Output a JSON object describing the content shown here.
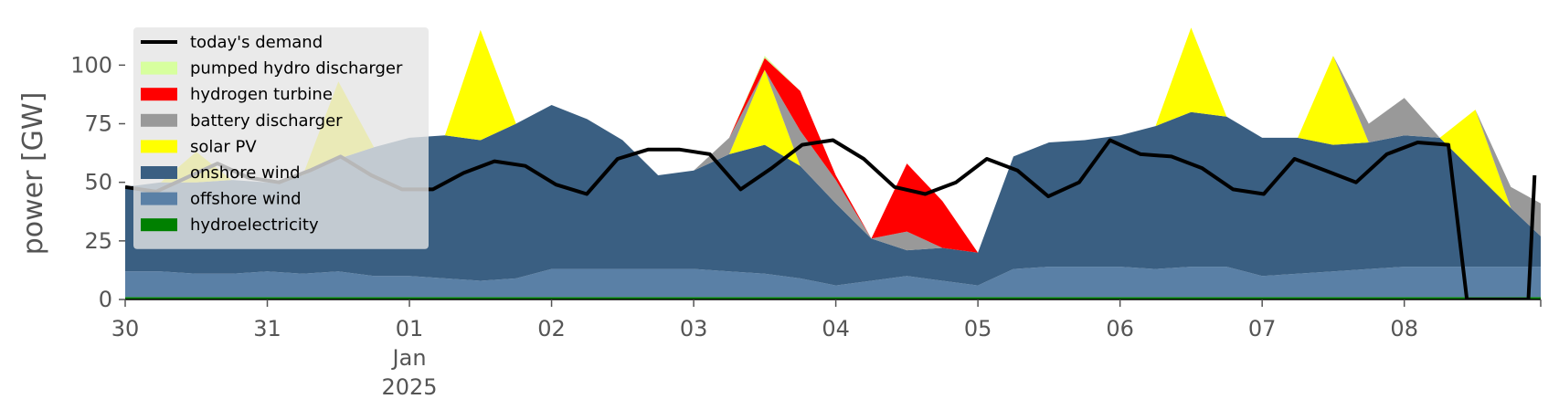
{
  "chart_data": {
    "type": "area",
    "ylabel": "power [GW]",
    "ylim": [
      0,
      120
    ],
    "yticks": [
      0,
      25,
      50,
      75,
      100
    ],
    "xlim": [
      0,
      9.96
    ],
    "x_ticks": [
      {
        "x": 0,
        "label": "30"
      },
      {
        "x": 1,
        "label": "31"
      },
      {
        "x": 2,
        "label": "01",
        "sub": [
          "Jan",
          "2025"
        ]
      },
      {
        "x": 3,
        "label": "02"
      },
      {
        "x": 4,
        "label": "03"
      },
      {
        "x": 5,
        "label": "04"
      },
      {
        "x": 6,
        "label": "05"
      },
      {
        "x": 7,
        "label": "06"
      },
      {
        "x": 8,
        "label": "07"
      },
      {
        "x": 9,
        "label": "08"
      }
    ],
    "legend_position": "top-left",
    "grid": false,
    "x": [
      0,
      0.25,
      0.5,
      0.75,
      1,
      1.25,
      1.5,
      1.75,
      2,
      2.25,
      2.5,
      2.75,
      3,
      3.25,
      3.5,
      3.75,
      4,
      4.25,
      4.5,
      4.75,
      5,
      5.25,
      5.5,
      5.75,
      6,
      6.25,
      6.5,
      6.75,
      7,
      7.25,
      7.5,
      7.75,
      8,
      8.25,
      8.5,
      8.75,
      9,
      9.25,
      9.5,
      9.75,
      9.96
    ],
    "stack_series": [
      {
        "name": "hydroelectricity",
        "color": "#008000",
        "values": [
          1,
          1,
          1,
          1,
          1,
          1,
          1,
          1,
          1,
          1,
          1,
          1,
          1,
          1,
          1,
          1,
          1,
          1,
          1,
          1,
          1,
          1,
          1,
          1,
          1,
          1,
          1,
          1,
          1,
          1,
          1,
          1,
          1,
          1,
          1,
          1,
          1,
          1,
          1,
          1,
          1
        ]
      },
      {
        "name": "offshore wind",
        "color": "#5a80a6",
        "values": [
          11,
          11,
          10,
          10,
          11,
          10,
          11,
          9,
          9,
          8,
          7,
          8,
          12,
          12,
          12,
          12,
          12,
          11,
          10,
          8,
          5,
          7,
          9,
          7,
          5,
          12,
          13,
          13,
          13,
          12,
          13,
          13,
          9,
          10,
          11,
          12,
          13,
          13,
          13,
          13,
          13
        ]
      },
      {
        "name": "onshore wind",
        "color": "#3a5f82",
        "values": [
          36,
          38,
          39,
          40,
          38,
          42,
          48,
          55,
          59,
          61,
          60,
          66,
          70,
          64,
          55,
          40,
          42,
          50,
          55,
          48,
          35,
          18,
          11,
          14,
          14,
          48,
          53,
          54,
          56,
          61,
          66,
          64,
          59,
          58,
          54,
          54,
          56,
          55,
          40,
          25,
          13
        ]
      },
      {
        "name": "solar PV",
        "color": "#ffff00",
        "values": [
          0,
          0,
          13,
          0,
          0,
          0,
          33,
          0,
          0,
          0,
          47,
          0,
          0,
          0,
          0,
          0,
          0,
          0,
          32,
          0,
          0,
          0,
          0,
          0,
          0,
          0,
          0,
          0,
          0,
          0,
          36,
          0,
          0,
          0,
          38,
          0,
          0,
          0,
          27,
          0,
          0
        ]
      },
      {
        "name": "battery discharger",
        "color": "#999999",
        "values": [
          0,
          0,
          0,
          0,
          0,
          0,
          0,
          0,
          0,
          0,
          0,
          0,
          0,
          0,
          0,
          0,
          0,
          7,
          0,
          15,
          10,
          0,
          8,
          0,
          0,
          0,
          0,
          0,
          0,
          0,
          0,
          0,
          0,
          0,
          0,
          8,
          16,
          0,
          0,
          9,
          14
        ]
      },
      {
        "name": "hydrogen turbine",
        "color": "#ff0000",
        "values": [
          0,
          0,
          0,
          0,
          0,
          0,
          0,
          0,
          0,
          0,
          0,
          0,
          0,
          0,
          0,
          0,
          0,
          0,
          5,
          17,
          2,
          0,
          29,
          20,
          0,
          0,
          0,
          0,
          0,
          0,
          0,
          0,
          0,
          0,
          0,
          0,
          0,
          0,
          0,
          0,
          0
        ]
      },
      {
        "name": "pumped hydro discharger",
        "color": "#d7ff9e",
        "values": [
          0,
          0,
          0,
          0,
          0,
          0,
          0,
          0,
          0,
          0,
          0,
          0,
          0,
          0,
          0,
          0,
          0,
          0,
          1,
          0,
          0,
          0,
          0,
          0,
          0,
          0,
          0,
          0,
          0,
          0,
          0,
          0,
          0,
          0,
          0,
          0,
          0,
          0,
          0,
          0,
          0
        ]
      }
    ],
    "demand_series": {
      "name": "today's demand",
      "color": "#000000",
      "points": [
        [
          0,
          48
        ],
        [
          0.25,
          46
        ],
        [
          0.5,
          52
        ],
        [
          0.75,
          58
        ],
        [
          1,
          52
        ],
        [
          1.25,
          50
        ],
        [
          1.5,
          55
        ],
        [
          1.75,
          61
        ],
        [
          2,
          53
        ],
        [
          2.25,
          47
        ],
        [
          2.5,
          47
        ],
        [
          2.75,
          54
        ],
        [
          3,
          59
        ],
        [
          3.25,
          57
        ],
        [
          3.5,
          49
        ],
        [
          3.75,
          45
        ],
        [
          4,
          60
        ],
        [
          4.25,
          64
        ],
        [
          4.5,
          64
        ],
        [
          4.75,
          62
        ],
        [
          5,
          47
        ],
        [
          5.25,
          56
        ],
        [
          5.5,
          66
        ],
        [
          5.75,
          68
        ],
        [
          6,
          60
        ],
        [
          6.25,
          48
        ],
        [
          6.5,
          45
        ],
        [
          6.75,
          50
        ],
        [
          7,
          60
        ],
        [
          7.25,
          55
        ],
        [
          7.5,
          44
        ],
        [
          7.75,
          50
        ],
        [
          8,
          68
        ],
        [
          8.25,
          62
        ],
        [
          8.5,
          61
        ],
        [
          8.75,
          56
        ],
        [
          9,
          47
        ],
        [
          9.25,
          45
        ],
        [
          9.5,
          60
        ],
        [
          9.75,
          55
        ],
        [
          10,
          50
        ],
        [
          10.25,
          62
        ],
        [
          10.5,
          67
        ],
        [
          10.75,
          66
        ],
        [
          10.9,
          0
        ],
        [
          11.4,
          0
        ],
        [
          11.45,
          53
        ]
      ]
    }
  },
  "legend": {
    "items": [
      {
        "label": "today's demand",
        "color": "#000000",
        "kind": "line"
      },
      {
        "label": "pumped hydro discharger",
        "color": "#d7ff9e",
        "kind": "patch"
      },
      {
        "label": "hydrogen turbine",
        "color": "#ff0000",
        "kind": "patch"
      },
      {
        "label": "battery discharger",
        "color": "#999999",
        "kind": "patch"
      },
      {
        "label": "solar PV",
        "color": "#ffff00",
        "kind": "patch"
      },
      {
        "label": "onshore wind",
        "color": "#3a5f82",
        "kind": "patch"
      },
      {
        "label": "offshore wind",
        "color": "#5a80a6",
        "kind": "patch"
      },
      {
        "label": "hydroelectricity",
        "color": "#008000",
        "kind": "patch"
      }
    ]
  }
}
